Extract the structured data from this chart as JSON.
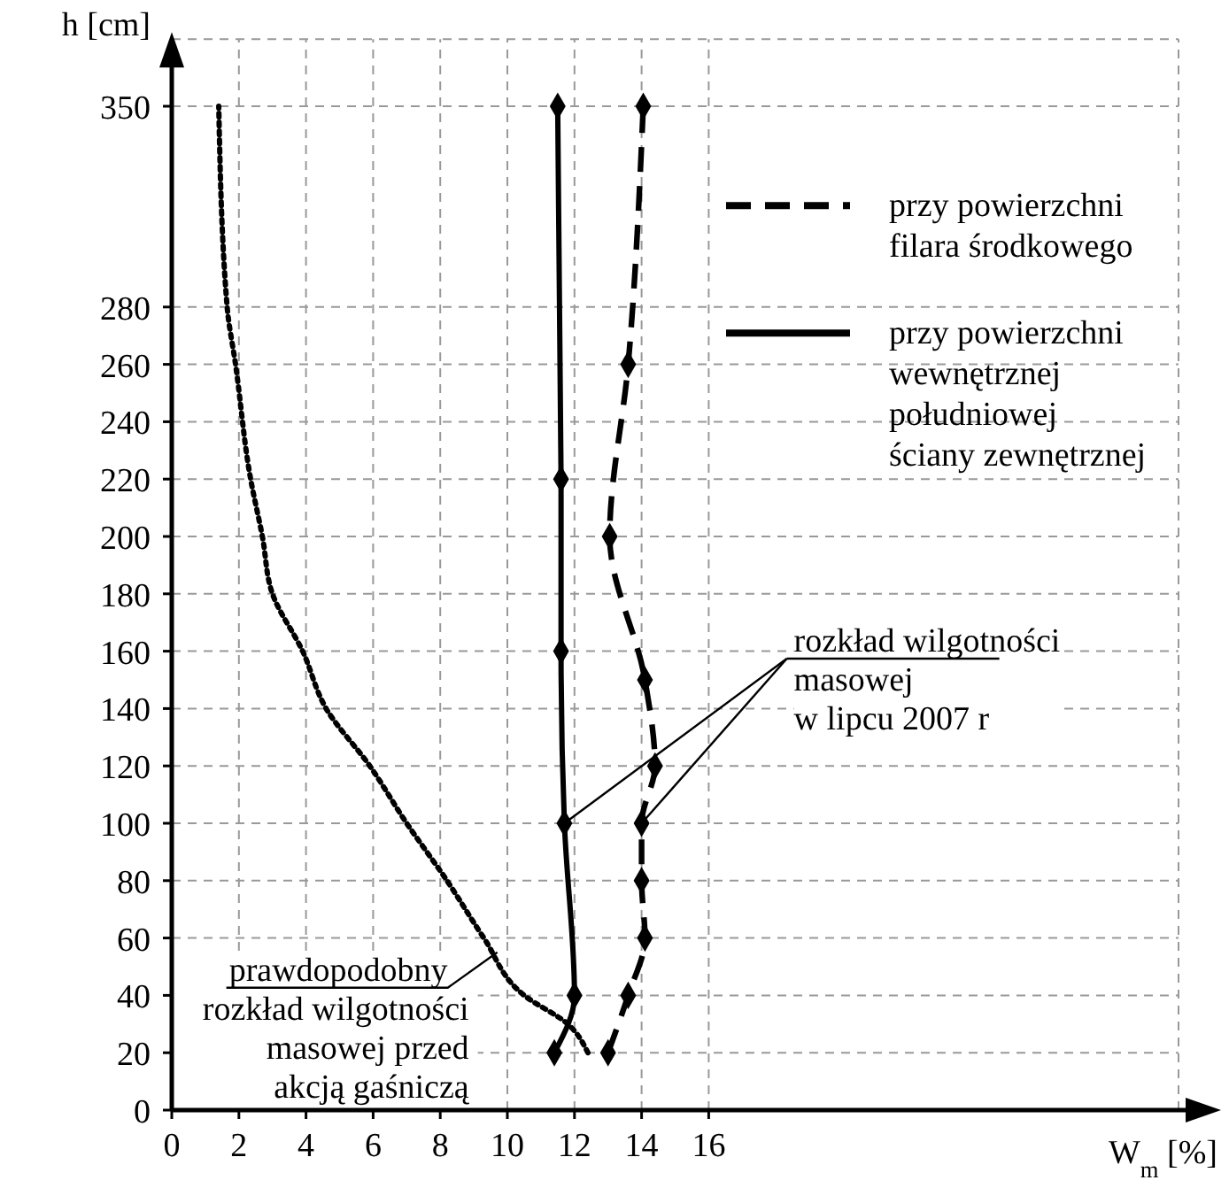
{
  "chart_data": {
    "type": "line",
    "xlabel": "W$_{m}$ [%]",
    "ylabel": "h [cm]",
    "xlim": [
      0,
      30
    ],
    "xticks": [
      0,
      2,
      4,
      6,
      8,
      10,
      12,
      14,
      16
    ],
    "ylim": [
      0,
      350
    ],
    "yticks": [
      0,
      20,
      40,
      60,
      80,
      100,
      120,
      140,
      160,
      180,
      200,
      220,
      240,
      260,
      280,
      350
    ],
    "grid": true,
    "legend": "top right",
    "marker": "diamond",
    "series": [
      {
        "name": "przy powierzchni\nfilara środkowego",
        "color": "#000000",
        "line_style": "dashed",
        "x": [
          13.0,
          13.6,
          14.1,
          14.0,
          14.0,
          14.4,
          14.1,
          13.05,
          13.6,
          14.05
        ],
        "values": [
          20,
          40,
          60,
          80,
          100,
          120,
          150,
          200,
          260,
          350
        ]
      },
      {
        "name": "przy powierzchni\nwewnętrznej\npołudniowej\nściany zewnętrznej",
        "color": "#000000",
        "line_style": "solid",
        "x": [
          11.4,
          12.0,
          11.7,
          11.6,
          11.6,
          11.5
        ],
        "values": [
          20,
          40,
          100,
          160,
          220,
          350
        ]
      },
      {
        "color": "#000000",
        "line_style": "dotted",
        "marker": "none",
        "x": [
          12.4,
          11.8,
          10.5,
          9.3,
          8.2,
          7.0,
          5.9,
          4.6,
          3.9,
          3.0,
          2.7,
          2.35,
          1.9,
          1.65,
          1.4
        ],
        "values": [
          20,
          30,
          40,
          60,
          80,
          100,
          120,
          140,
          160,
          180,
          200,
          220,
          260,
          280,
          350
        ]
      }
    ],
    "annotations": [
      {
        "text": "prawdopodobny\nrozkład wilgotności\nmasowej przed\nakcją gaśniczą",
        "x": 9.7,
        "y": 55
      },
      {
        "text": "rozkład wilgotności\nmasowej\nw lipcu 2007 r",
        "x": 14.0,
        "y": 100
      }
    ]
  }
}
